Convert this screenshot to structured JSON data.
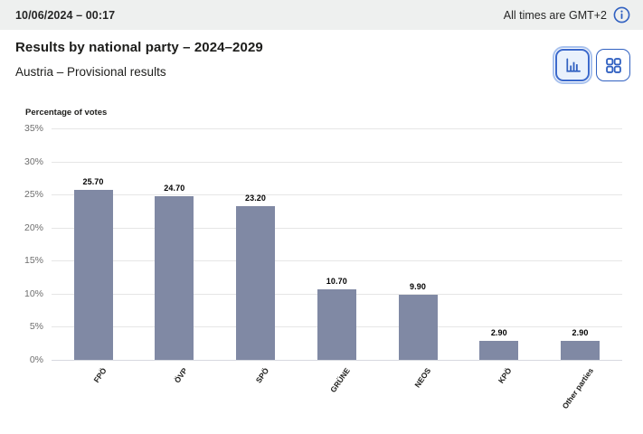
{
  "topbar": {
    "datetime": "10/06/2024 – 00:17",
    "timezone_note": "All times are GMT+2",
    "info_icon": "info-icon"
  },
  "header": {
    "title": "Results by national party – 2024–2029",
    "subtitle": "Austria – Provisional results"
  },
  "view_toggle": {
    "chart_view_icon": "bar-chart-icon",
    "grid_view_icon": "grid-view-icon",
    "active_view": "chart"
  },
  "colors": {
    "accent_blue": "#3161c1",
    "bar_fill": "#8089a4",
    "topbar_bg": "#eef0ef",
    "grid_line": "#e6e6e6",
    "tick_text": "#6e6e6e"
  },
  "chart_data": {
    "type": "bar",
    "title": "Percentage of votes",
    "ylabel": "Percentage of votes",
    "categories": [
      "FPÖ",
      "ÖVP",
      "SPÖ",
      "GRÜNE",
      "NEOS",
      "KPÖ",
      "Other parties"
    ],
    "values": [
      25.7,
      24.7,
      23.2,
      10.7,
      9.9,
      2.9,
      2.9
    ],
    "value_labels": [
      "25.70",
      "24.70",
      "23.20",
      "10.70",
      "9.90",
      "2.90",
      "2.90"
    ],
    "ylim": [
      0,
      35
    ],
    "ytick_step": 5,
    "ytick_suffix": "%",
    "grid": true,
    "legend": "none",
    "xtick_rotation": -55
  }
}
